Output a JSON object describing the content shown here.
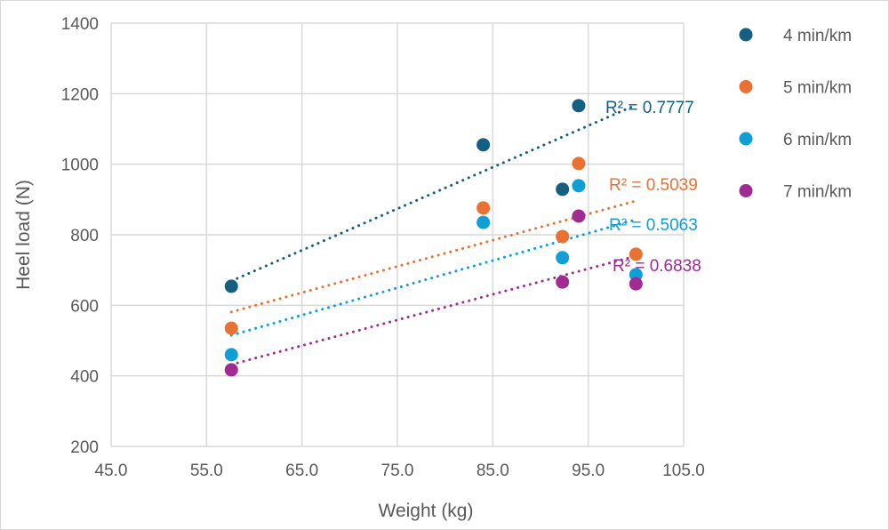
{
  "chart_data": {
    "type": "scatter",
    "xlabel": "Weight (kg)",
    "ylabel": "Heel load (N)",
    "xlim": [
      45,
      105
    ],
    "ylim": [
      200,
      1400
    ],
    "xticks": [
      "45.0",
      "55.0",
      "65.0",
      "75.0",
      "85.0",
      "95.0",
      "105.0"
    ],
    "yticks": [
      "200",
      "400",
      "600",
      "800",
      "1000",
      "1200",
      "1400"
    ],
    "grid": true,
    "legend_position": "right",
    "series": [
      {
        "name": "4 min/km",
        "color": "#156082",
        "points": [
          [
            57.6,
            654
          ],
          [
            84,
            1055
          ],
          [
            92.3,
            929
          ],
          [
            94,
            1166
          ]
        ],
        "trendline": {
          "label": "R² = 0.7777",
          "from": [
            57.6,
            669
          ],
          "to": [
            100,
            1168
          ]
        }
      },
      {
        "name": "5 min/km",
        "color": "#e97132",
        "points": [
          [
            57.6,
            535
          ],
          [
            84,
            876
          ],
          [
            92.3,
            795
          ],
          [
            94,
            1002
          ],
          [
            100,
            745
          ]
        ],
        "trendline": {
          "label": "R² = 0.5039",
          "from": [
            57.6,
            581
          ],
          "to": [
            100,
            896
          ]
        }
      },
      {
        "name": "6 min/km",
        "color": "#0f9ed5",
        "points": [
          [
            57.6,
            460
          ],
          [
            84,
            835
          ],
          [
            92.3,
            735
          ],
          [
            94,
            939
          ],
          [
            100,
            687
          ]
        ],
        "trendline": {
          "label": "R² = 0.5063",
          "from": [
            57.6,
            515
          ],
          "to": [
            100,
            843
          ]
        }
      },
      {
        "name": "7 min/km",
        "color": "#a02b93",
        "points": [
          [
            57.6,
            417
          ],
          [
            92.3,
            666
          ],
          [
            94,
            853
          ],
          [
            100,
            661
          ]
        ],
        "trendline": {
          "label": "R² = 0.6838",
          "from": [
            57.6,
            432
          ],
          "to": [
            100,
            740
          ]
        }
      }
    ]
  }
}
